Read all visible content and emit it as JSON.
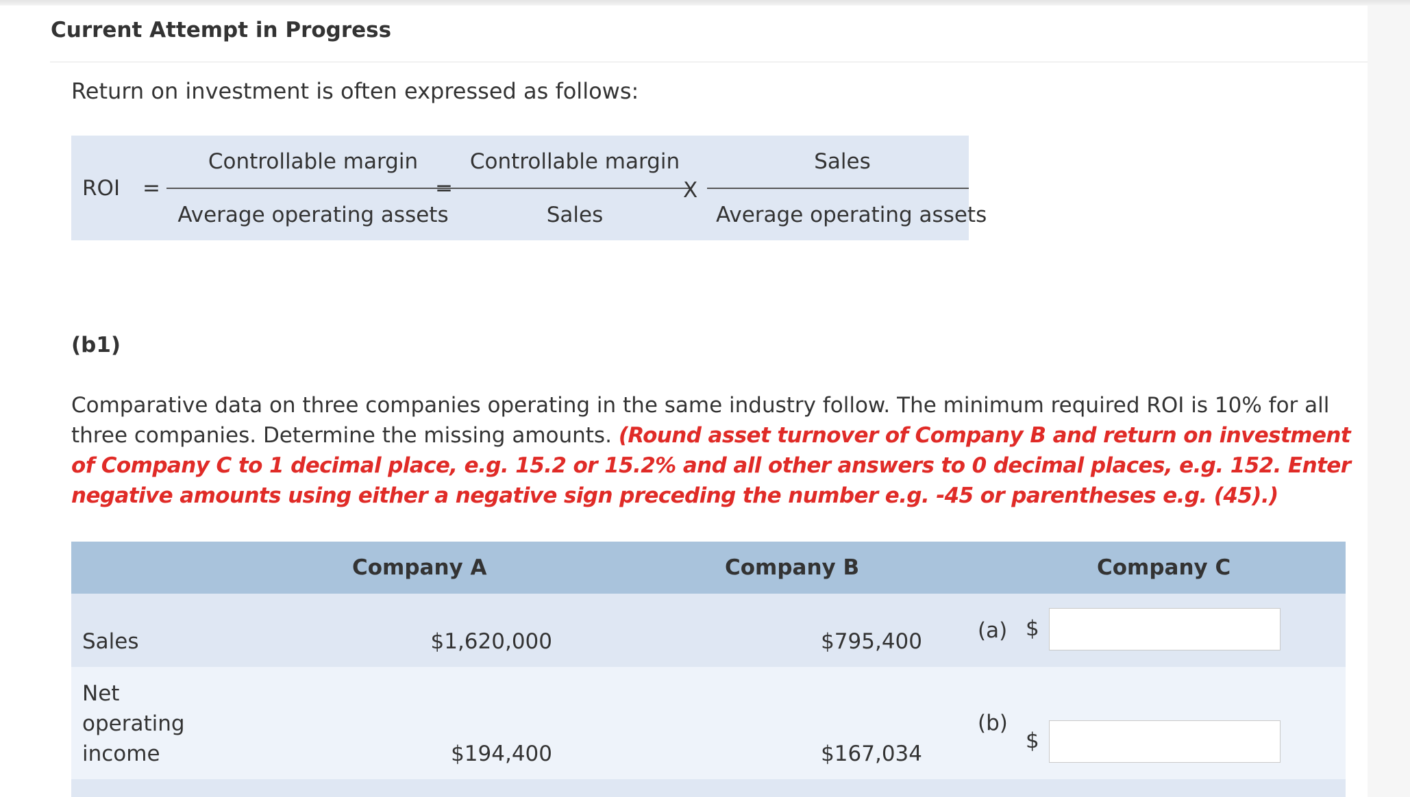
{
  "header": {
    "title": "Current Attempt in Progress"
  },
  "intro": "Return on investment is often expressed as follows:",
  "formula": {
    "lhs": "ROI",
    "eq1": "=",
    "eq2": "=",
    "times": "X",
    "frac1": {
      "numerator": "Controllable margin",
      "denominator": "Average operating assets"
    },
    "frac2": {
      "numerator": "Controllable margin",
      "denominator": "Sales"
    },
    "frac3": {
      "numerator": "Sales",
      "denominator": "Average operating assets"
    }
  },
  "part_label": "(b1)",
  "problem": {
    "text": "Comparative data on three companies operating in the same industry follow. The minimum required ROI is 10% for all three companies. Determine the missing amounts.",
    "instruction": "(Round asset turnover of Company B and return on investment of Company C to 1 decimal place, e.g. 15.2 or 15.2% and all other answers to 0 decimal places, e.g. 152. Enter negative amounts using either a negative sign preceding the number e.g. -45 or parentheses e.g. (45).)"
  },
  "table": {
    "headers": [
      "Company A",
      "Company B",
      "Company C"
    ],
    "rows": [
      {
        "label": "Sales",
        "company_a": "$1,620,000",
        "company_b": "$795,400",
        "answer_tag": "(a)",
        "currency": "$",
        "answer_value": ""
      },
      {
        "label_lines": [
          "Net",
          "operating",
          "income"
        ],
        "company_a": "$194,400",
        "company_b": "$167,034",
        "answer_tag": "(b)",
        "currency": "$",
        "answer_value": ""
      }
    ]
  }
}
